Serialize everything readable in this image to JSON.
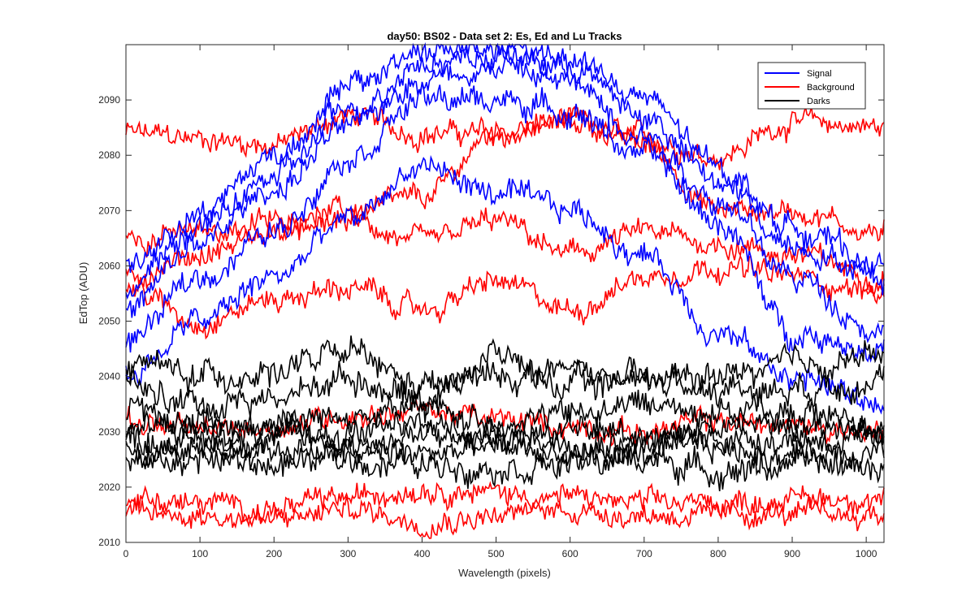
{
  "chart_data": {
    "type": "line",
    "title": "day50: BS02 - Data set 2: Es, Ed and Lu Tracks",
    "xlabel": "Wavelength (pixels)",
    "ylabel": "EdTop (ADU)",
    "xlim": [
      0,
      1024
    ],
    "ylim": [
      2010,
      2100
    ],
    "x_ticks": [
      "0",
      "100",
      "200",
      "300",
      "400",
      "500",
      "600",
      "700",
      "800",
      "900",
      "1000"
    ],
    "y_ticks": [
      "2010",
      "2020",
      "2030",
      "2040",
      "2050",
      "2060",
      "2070",
      "2080",
      "2090"
    ],
    "x_tick_values": [
      0,
      100,
      200,
      300,
      400,
      500,
      600,
      700,
      800,
      900,
      1000
    ],
    "y_tick_values": [
      2010,
      2020,
      2030,
      2040,
      2050,
      2060,
      2070,
      2080,
      2090
    ],
    "grid": false,
    "legend_position": "top-right",
    "colors": {
      "Signal": "#0000ff",
      "Background": "#ff0000",
      "Darks": "#000000"
    },
    "legend": [
      "Signal",
      "Background",
      "Darks"
    ],
    "series_x": [
      0,
      100,
      200,
      300,
      400,
      500,
      600,
      700,
      800,
      900,
      1024
    ],
    "series": [
      {
        "name": "Signal",
        "values": [
          2040,
          2050,
          2058,
          2068,
          2078,
          2073,
          2070,
          2062,
          2048,
          2040,
          2035
        ]
      },
      {
        "name": "Signal",
        "values": [
          2046,
          2058,
          2066,
          2080,
          2090,
          2090,
          2088,
          2080,
          2068,
          2048,
          2045
        ]
      },
      {
        "name": "Signal",
        "values": [
          2052,
          2064,
          2074,
          2085,
          2094,
          2096,
          2093,
          2084,
          2072,
          2058,
          2048
        ]
      },
      {
        "name": "Signal",
        "values": [
          2056,
          2067,
          2076,
          2088,
          2097,
          2098,
          2096,
          2087,
          2075,
          2064,
          2058
        ]
      },
      {
        "name": "Signal",
        "values": [
          2060,
          2070,
          2080,
          2092,
          2099,
          2099,
          2098,
          2090,
          2078,
          2067,
          2060
        ]
      },
      {
        "name": "Background",
        "values": [
          2084,
          2083,
          2082,
          2087,
          2084,
          2084,
          2086,
          2083,
          2080,
          2086,
          2085
        ]
      },
      {
        "name": "Background",
        "values": [
          2065,
          2066,
          2068,
          2070,
          2072,
          2084,
          2086,
          2082,
          2070,
          2070,
          2066
        ]
      },
      {
        "name": "Background",
        "values": [
          2058,
          2062,
          2066,
          2068,
          2064,
          2068,
          2062,
          2066,
          2064,
          2062,
          2058
        ]
      },
      {
        "name": "Background",
        "values": [
          2056,
          2050,
          2054,
          2056,
          2052,
          2057,
          2052,
          2058,
          2060,
          2058,
          2055
        ]
      },
      {
        "name": "Background",
        "values": [
          2032,
          2030,
          2031,
          2033,
          2034,
          2032,
          2031,
          2030,
          2032,
          2031,
          2030
        ]
      },
      {
        "name": "Background",
        "values": [
          2018,
          2017,
          2016,
          2018,
          2020,
          2019,
          2018,
          2017,
          2017,
          2018,
          2018
        ]
      },
      {
        "name": "Background",
        "values": [
          2015,
          2015,
          2014,
          2016,
          2014,
          2015,
          2016,
          2015,
          2015,
          2015,
          2015
        ]
      },
      {
        "name": "Darks",
        "values": [
          2043,
          2040,
          2041,
          2044,
          2038,
          2040,
          2041,
          2039,
          2040,
          2042,
          2044
        ]
      },
      {
        "name": "Darks",
        "values": [
          2038,
          2035,
          2036,
          2040,
          2036,
          2044,
          2038,
          2040,
          2038,
          2038,
          2040
        ]
      },
      {
        "name": "Darks",
        "values": [
          2033,
          2032,
          2031,
          2033,
          2034,
          2032,
          2033,
          2035,
          2034,
          2033,
          2032
        ]
      },
      {
        "name": "Darks",
        "values": [
          2031,
          2030,
          2030,
          2030,
          2031,
          2030,
          2030,
          2030,
          2031,
          2031,
          2030
        ]
      },
      {
        "name": "Darks",
        "values": [
          2029,
          2028,
          2029,
          2028,
          2029,
          2028,
          2029,
          2028,
          2029,
          2029,
          2028
        ]
      },
      {
        "name": "Darks",
        "values": [
          2027,
          2026,
          2027,
          2026,
          2026,
          2027,
          2026,
          2026,
          2027,
          2026,
          2027
        ]
      },
      {
        "name": "Darks",
        "values": [
          2024,
          2025,
          2024,
          2025,
          2024,
          2024,
          2024,
          2025,
          2023,
          2024,
          2024
        ]
      }
    ]
  }
}
